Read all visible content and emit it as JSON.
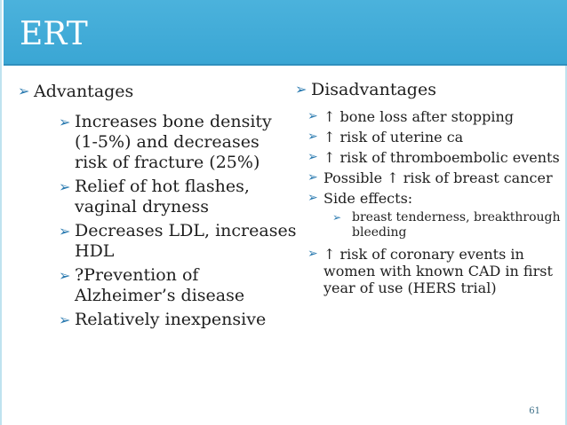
{
  "title": "ERT",
  "bullet_glyph": "➢",
  "advantages": {
    "heading": "Advantages",
    "items": [
      "Increases bone density (1-5%) and decreases  risk of fracture (25%)",
      "Relief of hot flashes, vaginal dryness",
      "Decreases LDL, increases HDL",
      "?Prevention of Alzheimer’s disease",
      "Relatively inexpensive"
    ]
  },
  "disadvantages": {
    "heading": "Disadvantages",
    "items": [
      "↑ bone loss after stopping",
      "↑ risk of uterine ca",
      "↑ risk of thromboembolic events",
      "Possible ↑ risk of breast cancer",
      "Side effects:"
    ],
    "side_effects_items": [
      "breast tenderness, breakthrough bleeding"
    ],
    "last_item": "↑ risk of coronary events in women with known CAD in first year of use (HERS trial)"
  },
  "page_number": "61",
  "colors": {
    "title_bar": "#3aa6d4",
    "bullet": "#2a7ab0",
    "page_number": "#3a6d86"
  }
}
